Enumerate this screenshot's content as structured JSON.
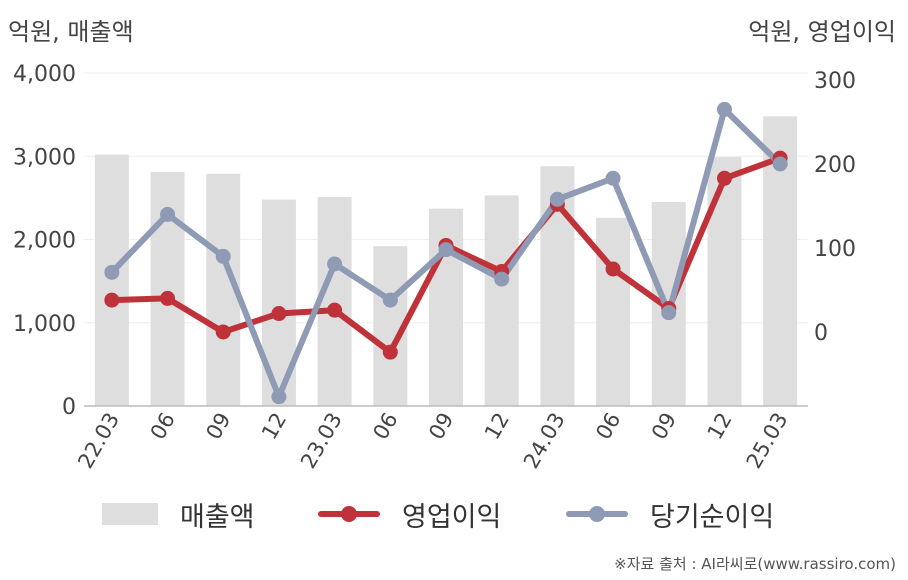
{
  "chart_data": {
    "type": "bar+line",
    "unit_left": "억원, 매출액",
    "unit_right": "억원, 영업이익",
    "categories": [
      "22.03",
      "06",
      "09",
      "12",
      "23.03",
      "06",
      "09",
      "12",
      "24.03",
      "06",
      "09",
      "12",
      "25.03"
    ],
    "bar_series": {
      "name": "매출액",
      "axis": "left",
      "color": "#dedede",
      "values": [
        3020,
        2810,
        2790,
        2480,
        2510,
        1920,
        2370,
        2530,
        2880,
        2260,
        2450,
        2990,
        3480
      ]
    },
    "line_series": [
      {
        "name": "영업이익",
        "axis": "right",
        "color": "#c0323a",
        "values": [
          38,
          40,
          0,
          22,
          26,
          -24,
          103,
          72,
          152,
          75,
          28,
          183,
          207
        ]
      },
      {
        "name": "당기순이익",
        "axis": "right",
        "color": "#8f9ab4",
        "values": [
          71,
          140,
          90,
          -77,
          81,
          38,
          98,
          63,
          158,
          183,
          23,
          265,
          200
        ]
      }
    ],
    "y_left": {
      "min": 0,
      "max": 4000,
      "ticks": [
        0,
        1000,
        2000,
        3000,
        4000
      ],
      "tick_labels": [
        "0",
        "1,000",
        "2,000",
        "3,000",
        "4,000"
      ]
    },
    "y_right": {
      "ticks": [
        0,
        100,
        200,
        300
      ],
      "tick_labels": [
        "0",
        "100",
        "200",
        "300"
      ]
    },
    "grid": true,
    "legend_position": "bottom"
  },
  "source": "※자료 출처 : AI라씨로(www.rassiro.com)"
}
